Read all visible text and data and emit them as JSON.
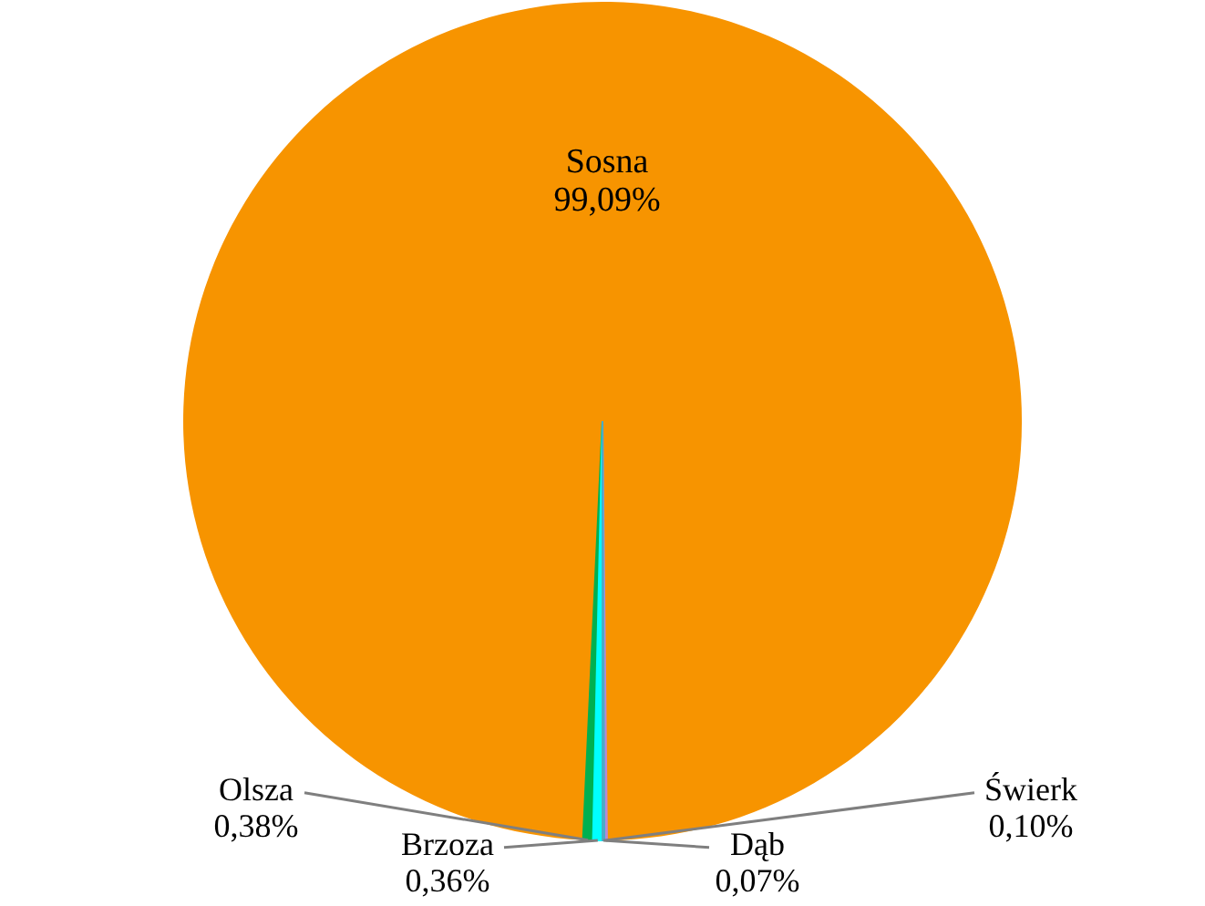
{
  "chart_data": {
    "type": "pie",
    "categories": [
      "Sosna",
      "Świerk",
      "Dąb",
      "Brzoza",
      "Olsza"
    ],
    "values": [
      99.09,
      0.1,
      0.07,
      0.36,
      0.38
    ],
    "colors": [
      "#f79400",
      "#b28bdc",
      "#4bacc6",
      "#00ffff",
      "#00b050"
    ],
    "value_labels": [
      "99,09%",
      "0,10%",
      "0,07%",
      "0,36%",
      "0,38%"
    ]
  }
}
